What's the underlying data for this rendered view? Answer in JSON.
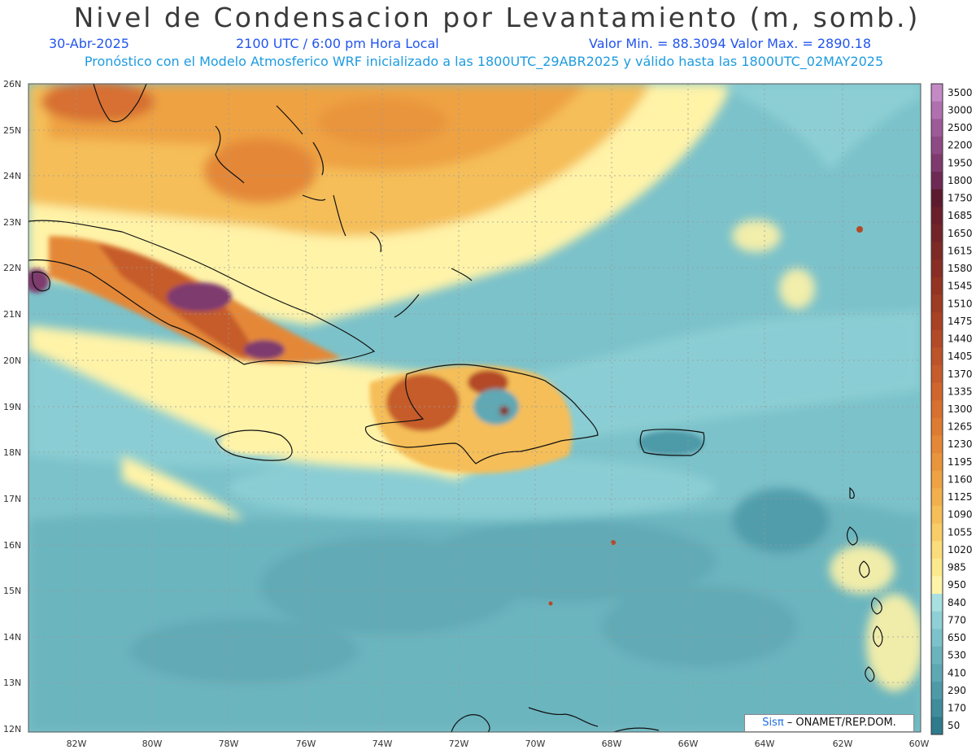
{
  "header": {
    "title": "Nivel de Condensacion por Levantamiento (m, somb.)",
    "date": "30-Abr-2025",
    "time": "2100 UTC / 6:00 pm Hora Local",
    "min_max": "Valor Min. = 88.3094  Valor Max. = 2890.18",
    "forecast": "Pronóstico con el Modelo Atmosferico WRF inicializado a las 1800UTC_29ABR2025 y válido hasta las  1800UTC_02MAY2025"
  },
  "axes": {
    "lat_labels": [
      "26N",
      "25N",
      "24N",
      "23N",
      "22N",
      "21N",
      "20N",
      "19N",
      "18N",
      "17N",
      "16N",
      "15N",
      "14N",
      "13N",
      "12N"
    ],
    "lon_labels": [
      "82W",
      "80W",
      "78W",
      "76W",
      "74W",
      "72W",
      "70W",
      "68W",
      "66W",
      "64W",
      "62W",
      "60W"
    ]
  },
  "colorbar": {
    "levels": [
      "50",
      "170",
      "290",
      "410",
      "530",
      "650",
      "770",
      "840",
      "950",
      "985",
      "1020",
      "1055",
      "1090",
      "1125",
      "1160",
      "1195",
      "1230",
      "1265",
      "1300",
      "1335",
      "1370",
      "1405",
      "1440",
      "1475",
      "1510",
      "1545",
      "1580",
      "1615",
      "1650",
      "1685",
      "1750",
      "1800",
      "1950",
      "2200",
      "2500",
      "3000",
      "3500"
    ],
    "colors": [
      "#2f7b8d",
      "#3f8c9c",
      "#4e9aa8",
      "#5ea8b4",
      "#6bb4be",
      "#7cc2ca",
      "#8ed0d6",
      "#a8e0e2",
      "#fff3a8",
      "#fde98d",
      "#fbdc7a",
      "#f8cd68",
      "#f5be58",
      "#f2b04c",
      "#eea243",
      "#e9953c",
      "#e48837",
      "#de7b33",
      "#d77030",
      "#cf662d",
      "#c65c2b",
      "#bd5329",
      "#b34a27",
      "#a94225",
      "#9e3b24",
      "#933423",
      "#882e24",
      "#7d2926",
      "#722428",
      "#6a1f2b",
      "#5e1a2f",
      "#6e2a55",
      "#7e3a6e",
      "#8e4a85",
      "#9e5a98",
      "#b070b0",
      "#c48ac6"
    ]
  },
  "credit": {
    "brand": "Sisπ",
    "text": " – ONAMET/REP.DOM."
  }
}
